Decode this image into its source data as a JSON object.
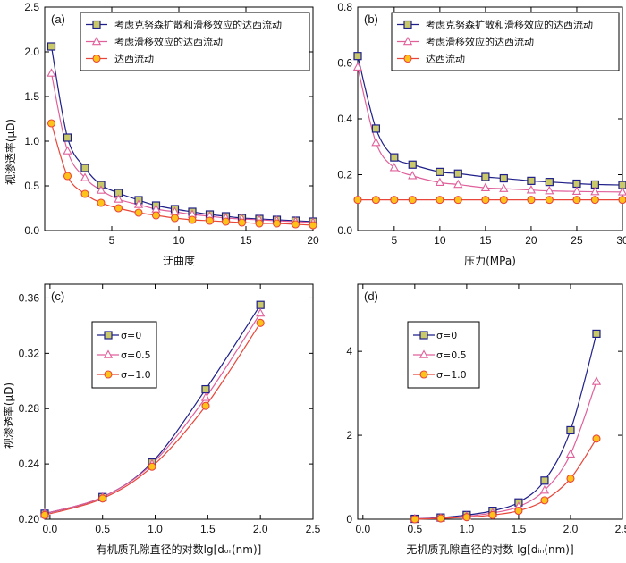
{
  "figure": {
    "colors": {
      "sq": "#1f1f8a",
      "sqFill": "#c9c96a",
      "tri": "#e0609a",
      "circ": "#e8463a",
      "circFill": "#ffc21a"
    },
    "y_label_top": "视渗透率(μD)",
    "y_label_bottom": "视渗透率(μD)"
  },
  "chart_data": [
    {
      "id": "a",
      "type": "line",
      "panel_label": "(a)",
      "xlabel": "迂曲度",
      "ylabel": "视渗透率(μD)",
      "xlim": [
        0,
        20
      ],
      "ylim": [
        0,
        2.5
      ],
      "xticks": [
        5,
        10,
        15,
        20
      ],
      "yticks": [
        0.0,
        0.5,
        1.0,
        1.5,
        2.0,
        2.5
      ],
      "xtick_labels": [
        "5",
        "10",
        "15",
        "20"
      ],
      "ytick_labels": [
        "0.0",
        "0.5",
        "1.0",
        "1.5",
        "2.0",
        "2.5"
      ],
      "legend_position": "top-right",
      "series": [
        {
          "name": "考虑克努森扩散和滑移效应的达西流动",
          "marker": "square",
          "x": [
            0.5,
            1.7,
            3,
            4.2,
            5.5,
            7,
            8.3,
            9.7,
            11,
            12.3,
            13.5,
            14.7,
            16,
            17.3,
            18.7,
            20
          ],
          "y": [
            2.06,
            1.04,
            0.7,
            0.51,
            0.42,
            0.34,
            0.28,
            0.24,
            0.21,
            0.18,
            0.16,
            0.14,
            0.13,
            0.12,
            0.11,
            0.1
          ]
        },
        {
          "name": "考虑滑移效应的达西流动",
          "marker": "triangle",
          "x": [
            0.5,
            1.7,
            3,
            4.2,
            5.5,
            7,
            8.3,
            9.7,
            11,
            12.3,
            13.5,
            14.7,
            16,
            17.3,
            18.7,
            20
          ],
          "y": [
            1.76,
            0.89,
            0.59,
            0.45,
            0.35,
            0.29,
            0.24,
            0.21,
            0.18,
            0.16,
            0.14,
            0.13,
            0.12,
            0.11,
            0.1,
            0.09
          ]
        },
        {
          "name": "达西流动",
          "marker": "circle",
          "x": [
            0.5,
            1.7,
            3,
            4.2,
            5.5,
            7,
            8.3,
            9.7,
            11,
            12.3,
            13.5,
            14.7,
            16,
            17.3,
            18.7,
            20
          ],
          "y": [
            1.2,
            0.61,
            0.41,
            0.31,
            0.25,
            0.2,
            0.17,
            0.14,
            0.12,
            0.11,
            0.1,
            0.09,
            0.08,
            0.08,
            0.07,
            0.06
          ]
        }
      ]
    },
    {
      "id": "b",
      "type": "line",
      "panel_label": "(b)",
      "xlabel": "压力(MPa)",
      "ylabel": "",
      "xlim": [
        1,
        30
      ],
      "ylim": [
        0,
        0.8
      ],
      "xticks": [
        5,
        10,
        15,
        20,
        25,
        30
      ],
      "yticks": [
        0.0,
        0.2,
        0.4,
        0.6,
        0.8
      ],
      "xtick_labels": [
        "5",
        "10",
        "15",
        "20",
        "25",
        "30"
      ],
      "ytick_labels": [
        "0.0",
        "0.2",
        "0.4",
        "0.6",
        "0.8"
      ],
      "legend_position": "top-right",
      "series": [
        {
          "name": "考虑克努森扩散和滑移效应的达西流动",
          "marker": "square",
          "x": [
            1,
            3,
            5,
            7,
            10,
            12,
            15,
            17,
            20,
            22,
            25,
            27,
            30
          ],
          "y": [
            0.625,
            0.365,
            0.262,
            0.236,
            0.21,
            0.204,
            0.192,
            0.187,
            0.178,
            0.174,
            0.168,
            0.165,
            0.163
          ]
        },
        {
          "name": "考虑滑移效应的达西流动",
          "marker": "triangle",
          "x": [
            1,
            3,
            5,
            7,
            10,
            12,
            15,
            17,
            20,
            22,
            25,
            27,
            30
          ],
          "y": [
            0.585,
            0.315,
            0.225,
            0.196,
            0.172,
            0.165,
            0.153,
            0.15,
            0.145,
            0.142,
            0.14,
            0.139,
            0.138
          ]
        },
        {
          "name": "达西流动",
          "marker": "circle",
          "x": [
            1,
            3,
            5,
            7,
            10,
            12,
            15,
            17,
            20,
            22,
            25,
            27,
            30
          ],
          "y": [
            0.11,
            0.11,
            0.11,
            0.11,
            0.11,
            0.11,
            0.11,
            0.11,
            0.11,
            0.11,
            0.11,
            0.11,
            0.11
          ]
        }
      ]
    },
    {
      "id": "c",
      "type": "line",
      "panel_label": "(c)",
      "xlabel": "有机质孔隙直径的对数lg[dₒᵣ(nm)]",
      "ylabel": "视渗透率(μD)",
      "xlim": [
        -0.05,
        2.5
      ],
      "ylim": [
        0.2,
        0.37
      ],
      "xticks": [
        0.0,
        0.5,
        1.0,
        1.5,
        2.0,
        2.5
      ],
      "yticks": [
        0.2,
        0.24,
        0.28,
        0.32,
        0.36
      ],
      "xtick_labels": [
        "0.0",
        "0.5",
        "1.0",
        "1.5",
        "2.0",
        "2.5"
      ],
      "ytick_labels": [
        "0.20",
        "0.24",
        "0.28",
        "0.32",
        "0.36"
      ],
      "legend_position": "top-left",
      "series": [
        {
          "name": "σ=0",
          "marker": "square",
          "x": [
            -0.05,
            0.5,
            0.97,
            1.48,
            2.0
          ],
          "y": [
            0.204,
            0.216,
            0.241,
            0.294,
            0.355
          ]
        },
        {
          "name": "σ=0.5",
          "marker": "triangle",
          "x": [
            -0.05,
            0.5,
            0.97,
            1.48,
            2.0
          ],
          "y": [
            0.204,
            0.216,
            0.24,
            0.288,
            0.349
          ]
        },
        {
          "name": "σ=1.0",
          "marker": "circle",
          "x": [
            -0.05,
            0.5,
            0.97,
            1.48,
            2.0
          ],
          "y": [
            0.203,
            0.215,
            0.238,
            0.282,
            0.342
          ]
        }
      ]
    },
    {
      "id": "d",
      "type": "line",
      "panel_label": "(d)",
      "xlabel": "无机质孔隙直径的对数 lg[dᵢₙ(nm)]",
      "ylabel": "",
      "xlim": [
        -0.05,
        2.5
      ],
      "ylim": [
        0,
        5.6
      ],
      "xticks": [
        0.0,
        0.5,
        1.0,
        1.5,
        2.0,
        2.5
      ],
      "yticks": [
        0,
        2,
        4
      ],
      "xtick_labels": [
        "0.0",
        "0.5",
        "1.0",
        "1.5",
        "2.0",
        "2.5"
      ],
      "ytick_labels": [
        "0",
        "2",
        "4"
      ],
      "legend_position": "top-left",
      "series": [
        {
          "name": "σ=0",
          "marker": "square",
          "x": [
            0.5,
            0.75,
            1.0,
            1.25,
            1.5,
            1.75,
            2.0,
            2.25
          ],
          "y": [
            0.01,
            0.04,
            0.1,
            0.2,
            0.4,
            0.92,
            2.12,
            4.42
          ]
        },
        {
          "name": "σ=0.5",
          "marker": "triangle",
          "x": [
            0.5,
            0.75,
            1.0,
            1.25,
            1.5,
            1.75,
            2.0,
            2.25
          ],
          "y": [
            0.01,
            0.03,
            0.07,
            0.15,
            0.3,
            0.69,
            1.55,
            3.28
          ]
        },
        {
          "name": "σ=1.0",
          "marker": "circle",
          "x": [
            0.5,
            0.75,
            1.0,
            1.25,
            1.5,
            1.75,
            2.0,
            2.25
          ],
          "y": [
            0.0,
            0.02,
            0.05,
            0.1,
            0.2,
            0.45,
            0.97,
            1.92
          ]
        }
      ]
    }
  ]
}
